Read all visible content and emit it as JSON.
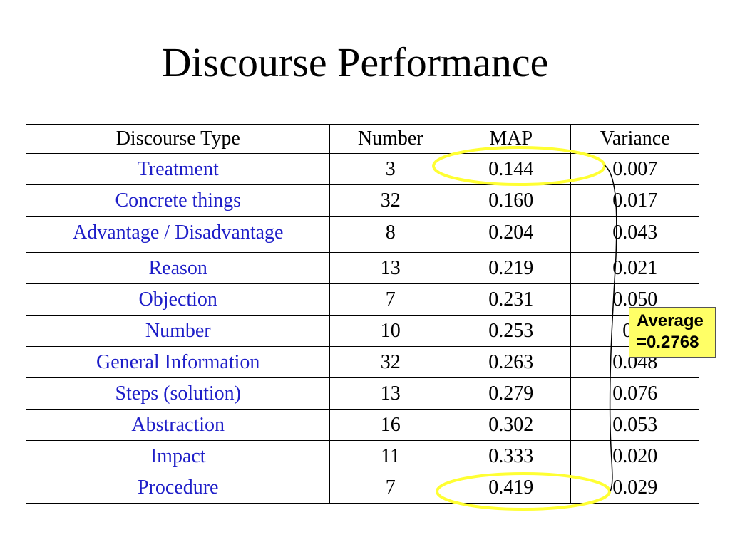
{
  "slide": {
    "title": "Discourse Performance"
  },
  "table": {
    "headers": [
      "Discourse Type",
      "Number",
      "MAP",
      "Variance"
    ],
    "rows": [
      [
        "Treatment",
        "3",
        "0.144",
        "0.007"
      ],
      [
        "Concrete things",
        "32",
        "0.160",
        "0.017"
      ],
      [
        "Advantage / Disadvantage",
        "8",
        "0.204",
        "0.043"
      ],
      [
        "Reason",
        "13",
        "0.219",
        "0.021"
      ],
      [
        "Objection",
        "7",
        "0.231",
        "0.050"
      ],
      [
        "Number",
        "10",
        "0.253",
        "0.0"
      ],
      [
        "General Information",
        "32",
        "0.263",
        "0.048"
      ],
      [
        "Steps (solution)",
        "13",
        "0.279",
        "0.076"
      ],
      [
        "Abstraction",
        "16",
        "0.302",
        "0.053"
      ],
      [
        "Impact",
        "11",
        "0.333",
        "0.020"
      ],
      [
        "Procedure",
        "7",
        "0.419",
        "0.029"
      ]
    ]
  },
  "callout": {
    "line1": "Average",
    "line2": "=0.2768"
  },
  "colors": {
    "type_text": "#1e1ec8",
    "highlight": "#ffff33",
    "callout_bg": "#ffff66"
  }
}
